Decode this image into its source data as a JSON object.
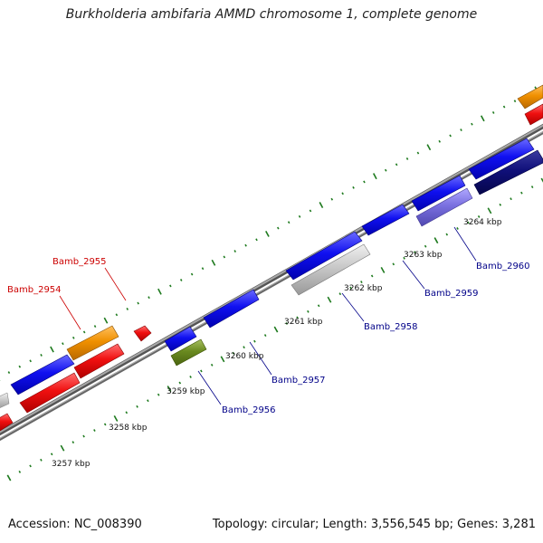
{
  "title": "Burkholderia ambifaria AMMD chromosome 1, complete genome",
  "footer": {
    "accession": "Accession: NC_008390",
    "summary": "Topology: circular; Length: 3,556,545 bp; Genes: 3,281"
  },
  "colors": {
    "tick_minor": "#1e7a1e",
    "backbone": "#888888",
    "label_forward": "#cc0000",
    "label_reverse": "#000088"
  },
  "kbp_labels": [
    "3257 kbp",
    "3258 kbp",
    "3259 kbp",
    "3260 kbp",
    "3261 kbp",
    "3262 kbp",
    "3263 kbp",
    "3264 kbp"
  ],
  "gene_labels": {
    "Bamb_2954": "Bamb_2954",
    "Bamb_2955": "Bamb_2955",
    "Bamb_2956": "Bamb_2956",
    "Bamb_2957": "Bamb_2957",
    "Bamb_2958": "Bamb_2958",
    "Bamb_2959": "Bamb_2959",
    "Bamb_2960": "Bamb_2960"
  }
}
